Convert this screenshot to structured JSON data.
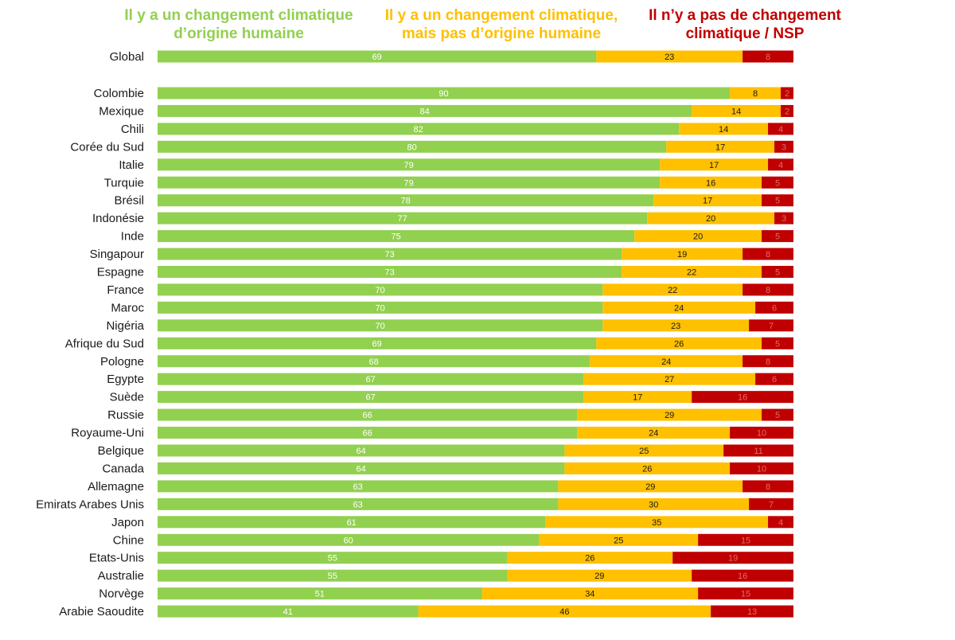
{
  "chart_data": {
    "type": "bar",
    "orientation": "horizontal",
    "stacked": true,
    "legend_position": "top",
    "xlim": [
      0,
      100
    ],
    "colors": {
      "human": "#92d050",
      "nonhuman": "#ffc000",
      "none": "#c00000",
      "human_text": "#ffffff",
      "nonhuman_text": "#1a1a1a",
      "none_text": "#e26b6b"
    },
    "legend": {
      "human": [
        "Il y a un changement climatique",
        "d’origine humaine"
      ],
      "nonhuman": [
        "Il y a un changement climatique,",
        "mais pas d’origine humaine"
      ],
      "none": [
        "Il n’y a pas de changement",
        "climatique / NSP"
      ]
    },
    "categories": [
      "Global",
      "Colombie",
      "Mexique",
      "Chili",
      "Corée du Sud",
      "Italie",
      "Turquie",
      "Brésil",
      "Indonésie",
      "Inde",
      "Singapour",
      "Espagne",
      "France",
      "Maroc",
      "Nigéria",
      "Afrique du Sud",
      "Pologne",
      "Egypte",
      "Suède",
      "Russie",
      "Royaume-Uni",
      "Belgique",
      "Canada",
      "Allemagne",
      "Emirats Arabes Unis",
      "Japon",
      "Chine",
      "Etats-Unis",
      "Australie",
      "Norvège",
      "Arabie Saoudite"
    ],
    "series": [
      {
        "name": "Il y a un changement climatique d’origine humaine",
        "key": "human",
        "values": [
          69,
          90,
          84,
          82,
          80,
          79,
          79,
          78,
          77,
          75,
          73,
          73,
          70,
          70,
          70,
          69,
          68,
          67,
          67,
          66,
          66,
          64,
          64,
          63,
          63,
          61,
          60,
          55,
          55,
          51,
          41
        ]
      },
      {
        "name": "Il y a un changement climatique, mais pas d’origine humaine",
        "key": "nonhuman",
        "values": [
          23,
          8,
          14,
          14,
          17,
          17,
          16,
          17,
          20,
          20,
          19,
          22,
          22,
          24,
          23,
          26,
          24,
          27,
          17,
          29,
          24,
          25,
          26,
          29,
          30,
          35,
          25,
          26,
          29,
          34,
          46
        ]
      },
      {
        "name": "Il n’y a pas de changement climatique / NSP",
        "key": "none",
        "values": [
          8,
          2,
          2,
          4,
          3,
          4,
          5,
          5,
          3,
          5,
          8,
          5,
          8,
          6,
          7,
          5,
          8,
          6,
          16,
          5,
          10,
          11,
          10,
          8,
          7,
          4,
          15,
          19,
          16,
          15,
          13
        ]
      }
    ]
  }
}
